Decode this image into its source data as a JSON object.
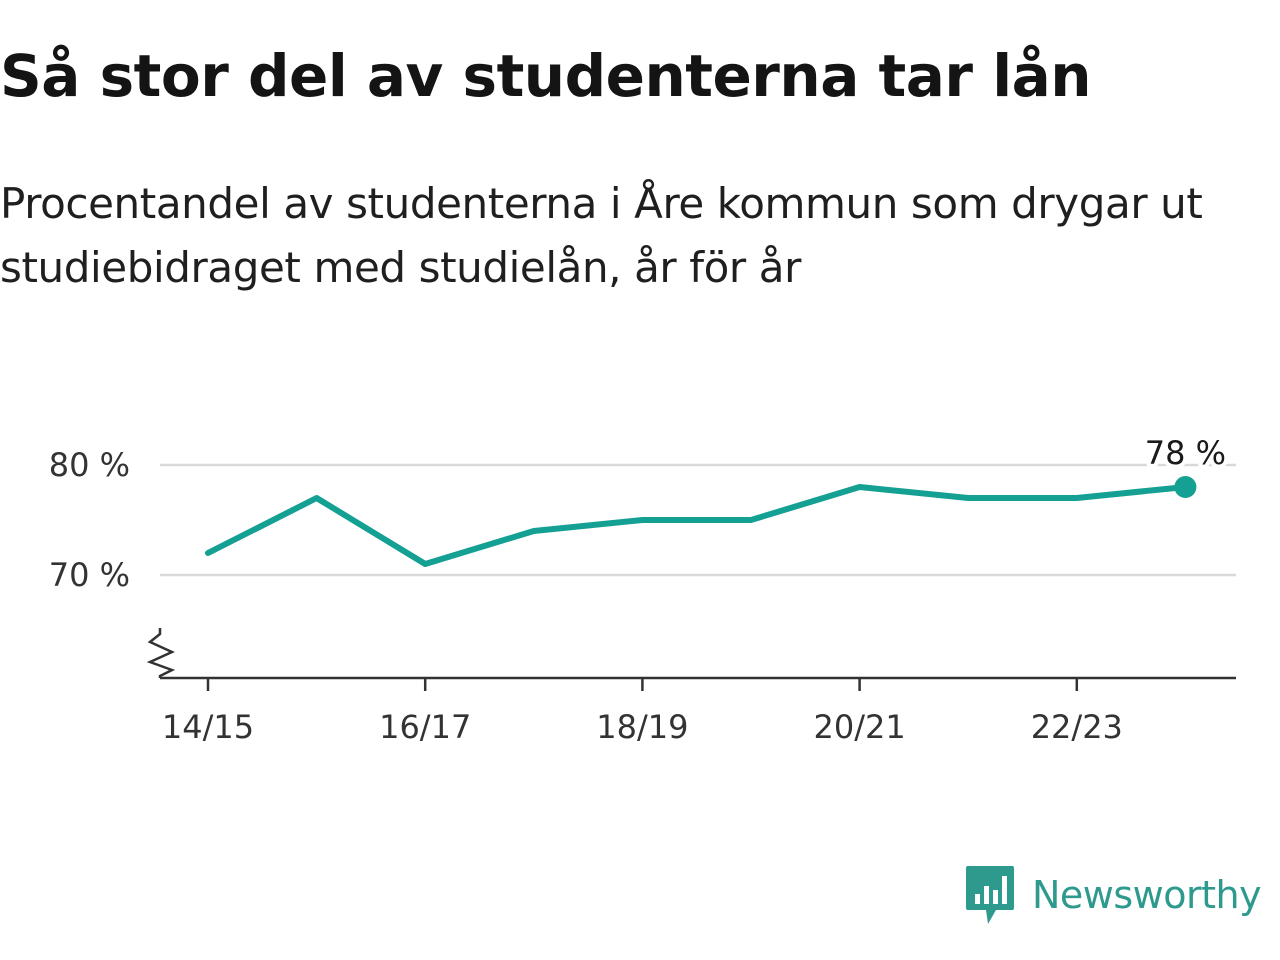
{
  "title": "Så stor del av studenterna tar lån",
  "subtitle_lines": [
    "Procentandel av studenterna i Åre kommun som drygar ut",
    "studiebidraget med studielån, år för år"
  ],
  "brand": {
    "name": "Newsworthy",
    "icon": "newsworthy-chart-icon",
    "color": "#2e9a8e"
  },
  "chart_data": {
    "type": "line",
    "x": [
      "14/15",
      "15/16",
      "16/17",
      "17/18",
      "18/19",
      "19/20",
      "20/21",
      "21/22",
      "22/23",
      "23/24"
    ],
    "values": [
      72,
      77,
      71,
      74,
      75,
      75,
      78,
      77,
      77,
      78
    ],
    "x_tick_labels": [
      "14/15",
      "16/17",
      "18/19",
      "20/21",
      "22/23"
    ],
    "y_ticks": [
      70,
      80
    ],
    "y_tick_labels": [
      "70 %",
      "80 %"
    ],
    "ylim": [
      60,
      80
    ],
    "axis_break": true,
    "grid": true,
    "line_color": "#14a092",
    "last_value_label": "78 %"
  }
}
